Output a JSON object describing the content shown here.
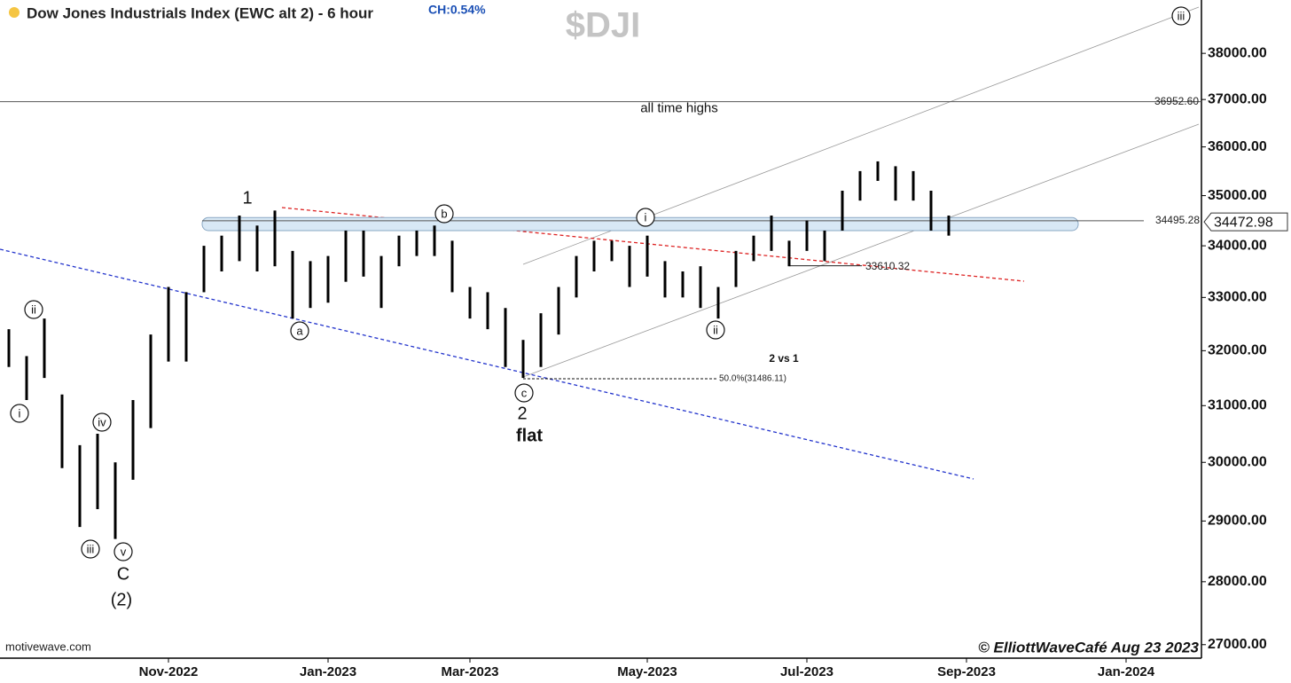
{
  "chart_data": {
    "type": "ohlc",
    "title": "Dow Jones Industrials Index (EWC alt 2) - 6 hour",
    "change": "CH:0.54%",
    "symbol": "$DJI",
    "source": "motivewave.com",
    "copyright": "© ElliottWaveCafé Aug 23 2023",
    "log_scale": true,
    "color": "#000000",
    "categories": [
      null,
      null,
      null,
      null,
      null,
      null,
      null,
      null,
      null,
      "Nov-2022",
      null,
      null,
      null,
      null,
      null,
      null,
      null,
      null,
      "Jan-2023",
      null,
      null,
      null,
      null,
      null,
      null,
      null,
      "Mar-2023",
      null,
      null,
      null,
      null,
      null,
      null,
      null,
      null,
      null,
      "May-2023",
      null,
      null,
      null,
      null,
      null,
      null,
      null,
      null,
      "Jul-2023",
      null,
      null,
      null,
      null,
      null,
      null,
      null,
      null,
      "Sep-2023",
      null,
      null,
      null,
      null,
      null,
      null,
      null,
      null,
      "Jan-2024",
      null,
      null,
      null,
      null
    ],
    "high": [
      32400,
      31900,
      32600,
      31200,
      30300,
      30500,
      30000,
      31100,
      32300,
      33200,
      33100,
      34000,
      34200,
      34600,
      34400,
      34700,
      33900,
      33700,
      33800,
      34300,
      34300,
      33800,
      34200,
      34300,
      34400,
      34100,
      33200,
      33100,
      32800,
      32200,
      32700,
      33200,
      33800,
      34100,
      34100,
      34000,
      34200,
      33700,
      33500,
      33600,
      33200,
      33900,
      34200,
      34600,
      34100,
      34500,
      34300,
      35100,
      35500,
      35700,
      35600,
      35500,
      35100,
      34600,
      null,
      null,
      null,
      null,
      null,
      null,
      null,
      null,
      null,
      null,
      null,
      null,
      null,
      null
    ],
    "low": [
      31700,
      31100,
      31500,
      29900,
      28900,
      29200,
      28700,
      29700,
      30600,
      31800,
      31800,
      33100,
      33500,
      33700,
      33500,
      33600,
      32600,
      32800,
      32900,
      33300,
      33400,
      32800,
      33600,
      33800,
      33800,
      33100,
      32600,
      32400,
      31700,
      31500,
      31700,
      32300,
      33000,
      33500,
      33700,
      33200,
      33400,
      33000,
      33000,
      32800,
      32600,
      33200,
      33700,
      33900,
      33600,
      33900,
      33700,
      34300,
      34900,
      35300,
      34900,
      34900,
      34300,
      34200,
      null,
      null,
      null,
      null,
      null,
      null,
      null,
      null,
      null,
      null,
      null,
      null,
      null,
      null
    ],
    "last_price": 34472.98,
    "ylim": [
      26790,
      39190
    ],
    "yticks": [
      {
        "value": 27000,
        "label": "27000.00"
      },
      {
        "value": 28000,
        "label": "28000.00"
      },
      {
        "value": 29000,
        "label": "29000.00"
      },
      {
        "value": 30000,
        "label": "30000.00"
      },
      {
        "value": 31000,
        "label": "31000.00"
      },
      {
        "value": 32000,
        "label": "32000.00"
      },
      {
        "value": 33000,
        "label": "33000.00"
      },
      {
        "value": 34000,
        "label": "34000.00"
      },
      {
        "value": 35000,
        "label": "35000.00"
      },
      {
        "value": 36000,
        "label": "36000.00"
      },
      {
        "value": 37000,
        "label": "37000.00"
      },
      {
        "value": 38000,
        "label": "38000.00"
      }
    ],
    "levels": [
      {
        "value": 36952.6,
        "label": "36952.60",
        "note": "all time highs"
      },
      {
        "value": 34495.28
      },
      {
        "value": 33610.32
      },
      {
        "value": 31486.11,
        "label": "50.0%(31486.11)"
      }
    ],
    "zone": [
      34300,
      34560
    ],
    "annotations": [
      {
        "text": "i",
        "circled": true
      },
      {
        "text": "ii",
        "circled": true
      },
      {
        "text": "iii",
        "circled": true
      },
      {
        "text": "iv",
        "circled": true
      },
      {
        "text": "v",
        "circled": true
      },
      {
        "text": "C",
        "circled": false
      },
      {
        "text": "(2)",
        "circled": false
      },
      {
        "text": "1",
        "circled": false
      },
      {
        "text": "a",
        "circled": true
      },
      {
        "text": "b",
        "circled": true
      },
      {
        "text": "c",
        "circled": true
      },
      {
        "text": "2",
        "circled": false
      },
      {
        "text": "flat",
        "circled": false
      },
      {
        "text": "i",
        "circled": true
      },
      {
        "text": "ii",
        "circled": true
      },
      {
        "text": "iii",
        "circled": true
      },
      {
        "text": "2 vs 1",
        "circled": false
      }
    ]
  }
}
